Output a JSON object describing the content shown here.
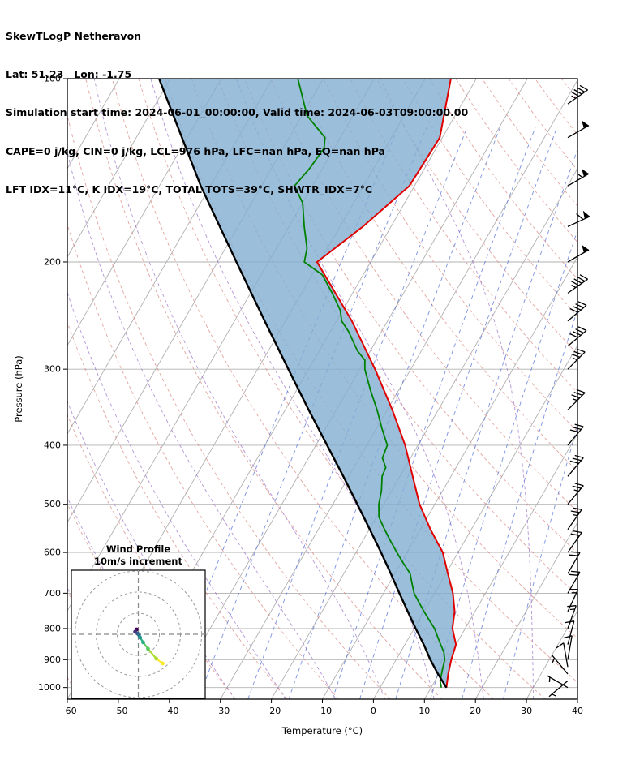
{
  "header": {
    "line1": "SkewTLogP Netheravon",
    "line2": "Lat: 51.23   Lon: -1.75",
    "line3": "Simulation start time: 2024-06-01_00:00:00, Valid time: 2024-06-03T09:00:00.00",
    "line4": "CAPE=0 j/kg, CIN=0 j/kg, LCL=976 hPa, LFC=nan hPa, EQ=nan hPa",
    "line5": "LFT IDX=11°C, K IDX=19°C, TOTAL TOTS=39°C, SHWTR_IDX=7°C"
  },
  "axes": {
    "xlabel": "Temperature (°C)",
    "ylabel": "Pressure (hPa)"
  },
  "chart_data": {
    "type": "skewt-logp",
    "station": "Netheravon",
    "lat": 51.23,
    "lon": -1.75,
    "xlim": [
      -60,
      40
    ],
    "pressure_lim": [
      1045,
      100
    ],
    "x_ticks": [
      -60,
      -50,
      -40,
      -30,
      -20,
      -10,
      0,
      10,
      20,
      30,
      40
    ],
    "y_ticks": [
      100,
      200,
      300,
      400,
      500,
      600,
      700,
      800,
      900,
      1000
    ],
    "skew_slope": 0.577,
    "indices": {
      "cape_jkg": 0,
      "cin_jkg": 0,
      "lcl_hpa": 976,
      "lfc_hpa": "nan",
      "eq_hpa": "nan",
      "lft_idx_c": 11,
      "k_idx_c": 19,
      "total_tots_c": 39,
      "shwtr_idx_c": 7,
      "sim_start": "2024-06-01_00:00:00",
      "valid_time": "2024-06-03T09:00:00.00"
    },
    "temperature_profile": {
      "pressure_hpa": [
        1000,
        950,
        900,
        850,
        800,
        750,
        700,
        650,
        600,
        550,
        500,
        450,
        400,
        350,
        300,
        250,
        200,
        175,
        150,
        125,
        100
      ],
      "temp_c": [
        13,
        11.8,
        10.8,
        10,
        7.5,
        6,
        3.6,
        0.4,
        -3,
        -8,
        -13,
        -17.5,
        -22.5,
        -29,
        -37,
        -47,
        -60.5,
        -55.5,
        -51,
        -50.5,
        -55
      ]
    },
    "dewpoint_profile": {
      "pressure_hpa": [
        1000,
        975,
        950,
        925,
        900,
        875,
        850,
        825,
        800,
        775,
        750,
        725,
        700,
        675,
        650,
        625,
        600,
        575,
        550,
        525,
        500,
        475,
        450,
        435,
        420,
        400,
        375,
        350,
        325,
        300,
        290,
        280,
        260,
        250,
        240,
        225,
        210,
        200,
        190,
        175,
        160,
        150,
        140,
        130,
        125,
        115,
        100
      ],
      "temp_c": [
        12,
        11,
        10.5,
        10,
        9.5,
        8.5,
        7,
        5.5,
        4,
        2,
        0,
        -2,
        -4,
        -5.5,
        -7,
        -9.5,
        -12,
        -14.5,
        -17,
        -19.5,
        -21,
        -22,
        -23.5,
        -23.8,
        -25.5,
        -26,
        -29,
        -32,
        -35.5,
        -39,
        -40,
        -42.5,
        -46.5,
        -49,
        -50.5,
        -54,
        -58,
        -63,
        -64,
        -67,
        -70,
        -73.5,
        -72.5,
        -72,
        -73,
        -79,
        -85
      ]
    },
    "parcel_profile": {
      "pressure_hpa": [
        1000,
        950,
        900,
        850,
        800,
        750,
        700,
        650,
        600,
        550,
        500,
        450,
        400,
        350,
        300,
        250,
        200,
        150,
        100
      ],
      "temp_c": [
        13,
        9.8,
        6.7,
        3.7,
        0.3,
        -3.2,
        -6.9,
        -10.8,
        -15.1,
        -19.9,
        -25.2,
        -31.1,
        -37.8,
        -45.4,
        -54,
        -64.1,
        -76.3,
        -91.9,
        -112.2
      ]
    },
    "wind_barbs": {
      "pressure_hpa": [
        110,
        125,
        150,
        175,
        200,
        225,
        250,
        275,
        300,
        350,
        400,
        450,
        500,
        550,
        600,
        650,
        700,
        750,
        800,
        850,
        900,
        925,
        950,
        975,
        1000
      ],
      "speed_kt": [
        45,
        50,
        55,
        60,
        50,
        45,
        40,
        40,
        35,
        35,
        30,
        30,
        25,
        25,
        20,
        20,
        20,
        15,
        15,
        10,
        10,
        10,
        5,
        5,
        5
      ],
      "dir_from_deg": [
        55,
        60,
        60,
        65,
        60,
        55,
        50,
        50,
        45,
        45,
        40,
        40,
        40,
        35,
        35,
        30,
        30,
        25,
        20,
        15,
        10,
        350,
        320,
        230,
        300
      ]
    },
    "hodograph": {
      "title_line1": "Wind Profile",
      "title_line2": "10m/s increment",
      "ring_interval_ms": 10,
      "rings_ms": [
        10,
        20,
        30
      ],
      "trace_uv_ms": [
        [
          -0.8,
          2.3
        ],
        [
          -1.5,
          1.2
        ],
        [
          -0.4,
          0.4
        ],
        [
          0.3,
          -0.3
        ],
        [
          0.8,
          -1.5
        ],
        [
          2.3,
          -3.8
        ],
        [
          4.6,
          -6.9
        ],
        [
          8.5,
          -11.5
        ],
        [
          11.5,
          -13.8
        ]
      ],
      "trace_colors": [
        "#440154",
        "#46327e",
        "#3b528b",
        "#2c728e",
        "#21918c",
        "#28ae80",
        "#5ec962",
        "#addc30",
        "#fde725"
      ]
    },
    "background_lines": {
      "isotherms_c": {
        "min": -130,
        "max": 40,
        "step": 10
      },
      "dry_adiabats_theta_k": {
        "min": 213,
        "max": 473,
        "step": 10
      },
      "moist_adiabats_start_c": [
        -50,
        -40,
        -30,
        -20,
        -10,
        0,
        10,
        20,
        30,
        40
      ],
      "mixing_ratio_gkg": [
        0.1,
        0.2,
        0.5,
        1,
        2,
        3,
        5,
        8,
        12,
        20
      ]
    },
    "colors": {
      "temperature": "#e00000",
      "dewpoint": "#008000",
      "parcel": "#000000",
      "cape_fill": "#82afd2",
      "isotherm": "#b0b0b0",
      "dry_adiabat": "#d98880",
      "moist_adiabat": "#9b72c8",
      "mixing_ratio": "#5b76d8"
    }
  }
}
